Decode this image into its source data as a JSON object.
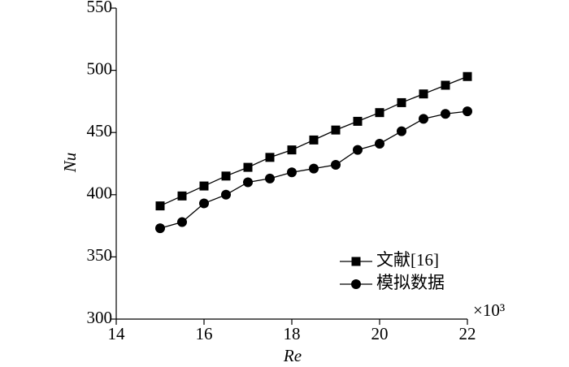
{
  "chart_data": {
    "type": "line",
    "xlabel": "Re",
    "ylabel": "Nu",
    "annotation": "×10³",
    "x": [
      15,
      15.5,
      16,
      16.5,
      17,
      17.5,
      18,
      18.5,
      19,
      19.5,
      20,
      20.5,
      21,
      21.5,
      22
    ],
    "series": [
      {
        "name": "文献[16]",
        "color": "#000000",
        "marker": "square",
        "values": [
          391,
          399,
          407,
          415,
          422,
          430,
          436,
          444,
          452,
          459,
          466,
          474,
          481,
          488,
          495
        ]
      },
      {
        "name": "模拟数据",
        "color": "#000000",
        "marker": "circle",
        "values": [
          373,
          378,
          393,
          400,
          410,
          413,
          418,
          421,
          424,
          436,
          441,
          451,
          461,
          465,
          467
        ]
      }
    ],
    "xlim": [
      14,
      22
    ],
    "xticks": [
      14,
      16,
      18,
      20,
      22
    ],
    "ylim": [
      300,
      550
    ],
    "yticks": [
      300,
      350,
      400,
      450,
      500,
      550
    ],
    "legend": "lower right",
    "grid": false
  }
}
